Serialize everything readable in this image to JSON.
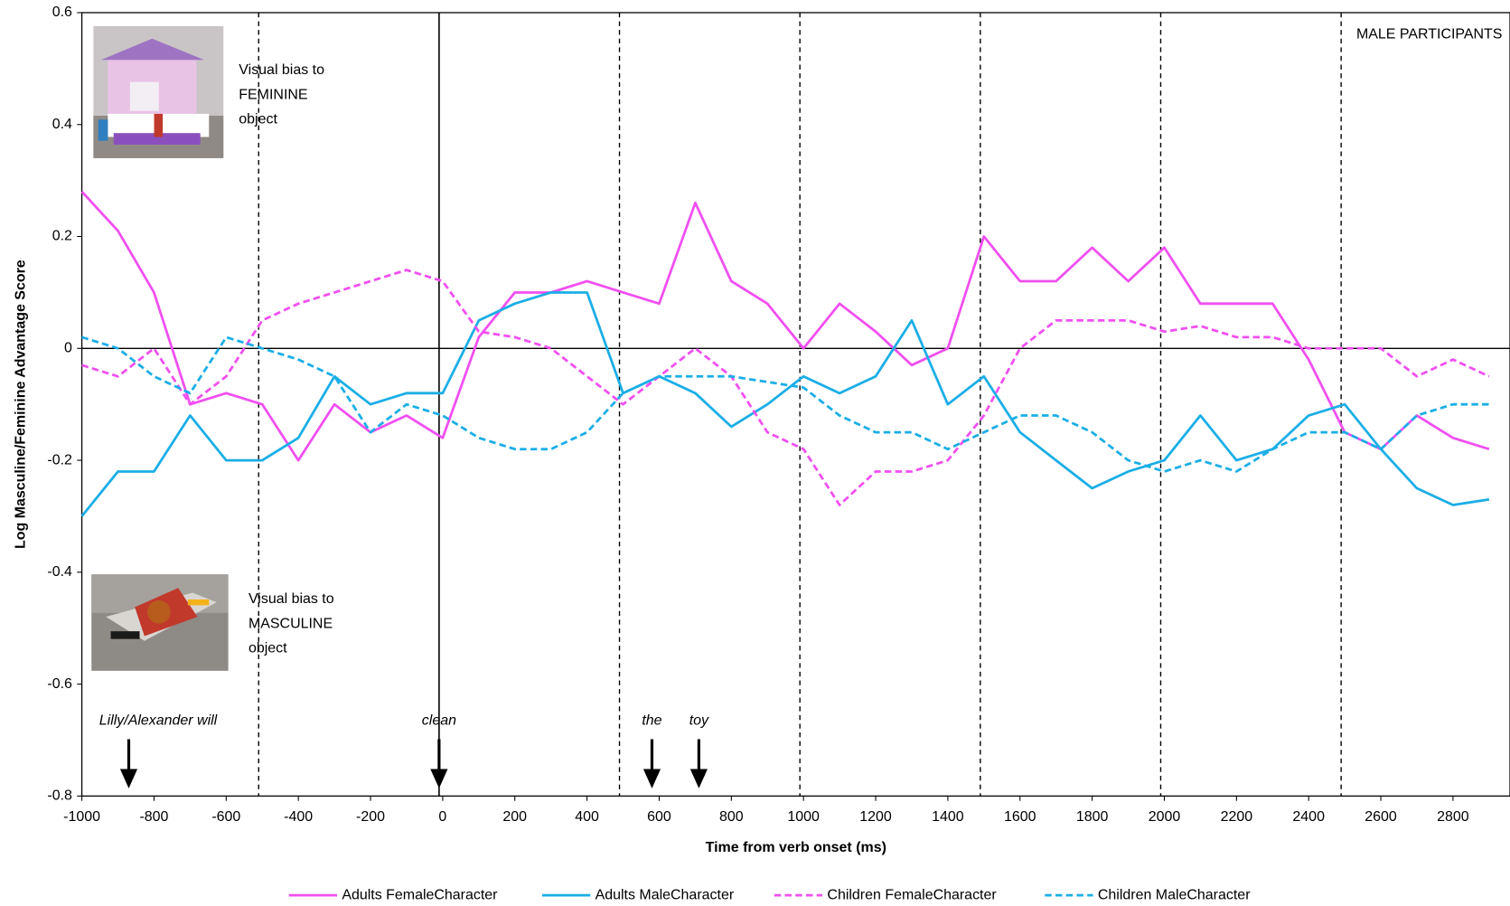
{
  "chart_data": {
    "type": "line",
    "x_label": "Time from verb onset (ms)",
    "y_label": "Log Masculine/Feminine Advantage Score",
    "panel_label": "MALE PARTICIPANTS",
    "xlim": [
      -1000,
      2958
    ],
    "ylim": [
      -0.8,
      0.6
    ],
    "xticks": [
      -1000,
      -800,
      -600,
      -400,
      -200,
      0,
      200,
      400,
      600,
      800,
      1000,
      1200,
      1400,
      1600,
      1800,
      2000,
      2200,
      2400,
      2600,
      2800
    ],
    "yticks": [
      -0.8,
      -0.6,
      -0.4,
      -0.2,
      0,
      0.2,
      0.4,
      0.6
    ],
    "solid_vlines": [
      -10
    ],
    "dashed_vlines": [
      -510,
      490,
      990,
      1490,
      1990,
      2490
    ],
    "x": [
      -1000,
      -900,
      -800,
      -700,
      -600,
      -500,
      -400,
      -300,
      -200,
      -100,
      0,
      100,
      200,
      300,
      400,
      500,
      600,
      700,
      800,
      900,
      1000,
      1100,
      1200,
      1300,
      1400,
      1500,
      1600,
      1700,
      1800,
      1900,
      2000,
      2100,
      2200,
      2300,
      2400,
      2500,
      2600,
      2700,
      2800,
      2900
    ],
    "series": [
      {
        "name": "Adults FemaleCharacter",
        "color": "#f04ff0",
        "line_style": "solid",
        "values": [
          0.28,
          0.21,
          0.1,
          -0.1,
          -0.08,
          -0.1,
          -0.2,
          -0.1,
          -0.15,
          -0.12,
          -0.16,
          0.02,
          0.1,
          0.1,
          0.12,
          0.1,
          0.08,
          0.26,
          0.12,
          0.08,
          0.0,
          0.08,
          0.03,
          -0.03,
          0.0,
          0.2,
          0.12,
          0.12,
          0.18,
          0.12,
          0.18,
          0.08,
          0.08,
          0.08,
          -0.02,
          -0.15,
          -0.18,
          -0.12,
          -0.16,
          -0.18
        ]
      },
      {
        "name": "Adults MaleCharacter",
        "color": "#1aaee6",
        "line_style": "solid",
        "values": [
          -0.3,
          -0.22,
          -0.22,
          -0.12,
          -0.2,
          -0.2,
          -0.16,
          -0.05,
          -0.1,
          -0.08,
          -0.08,
          0.05,
          0.08,
          0.1,
          0.1,
          -0.08,
          -0.05,
          -0.08,
          -0.14,
          -0.1,
          -0.05,
          -0.08,
          -0.05,
          0.05,
          -0.1,
          -0.05,
          -0.15,
          -0.2,
          -0.25,
          -0.22,
          -0.2,
          -0.12,
          -0.2,
          -0.18,
          -0.12,
          -0.1,
          -0.18,
          -0.25,
          -0.28,
          -0.27
        ]
      },
      {
        "name": "Children FemaleCharacter",
        "color": "#f04ff0",
        "line_style": "dashed",
        "values": [
          -0.03,
          -0.05,
          0.0,
          -0.1,
          -0.05,
          0.05,
          0.08,
          0.1,
          0.12,
          0.14,
          0.12,
          0.03,
          0.02,
          0.0,
          -0.05,
          -0.1,
          -0.05,
          0.0,
          -0.05,
          -0.15,
          -0.18,
          -0.28,
          -0.22,
          -0.22,
          -0.2,
          -0.12,
          0.0,
          0.05,
          0.05,
          0.05,
          0.03,
          0.04,
          0.02,
          0.02,
          0.0,
          0.0,
          0.0,
          -0.05,
          -0.02,
          -0.05
        ]
      },
      {
        "name": "Children MaleCharacter",
        "color": "#1aaee6",
        "line_style": "dashed",
        "values": [
          0.02,
          0.0,
          -0.05,
          -0.08,
          0.02,
          0.0,
          -0.02,
          -0.05,
          -0.15,
          -0.1,
          -0.12,
          -0.16,
          -0.18,
          -0.18,
          -0.15,
          -0.08,
          -0.05,
          -0.05,
          -0.05,
          -0.06,
          -0.07,
          -0.12,
          -0.15,
          -0.15,
          -0.18,
          -0.15,
          -0.12,
          -0.12,
          -0.15,
          -0.2,
          -0.22,
          -0.2,
          -0.22,
          -0.18,
          -0.15,
          -0.15,
          -0.18,
          -0.12,
          -0.1,
          -0.1
        ]
      }
    ],
    "word_markers": [
      {
        "text": "Lilly/Alexander will",
        "x": -870
      },
      {
        "text": "clean",
        "x": -10
      },
      {
        "text": "the",
        "x": 580
      },
      {
        "text": "toy",
        "x": 710
      }
    ],
    "image_notes": [
      {
        "lines": [
          "Visual bias to",
          "FEMININE",
          "object"
        ]
      },
      {
        "lines": [
          "Visual bias to",
          "MASCULINE",
          "object"
        ]
      }
    ]
  }
}
